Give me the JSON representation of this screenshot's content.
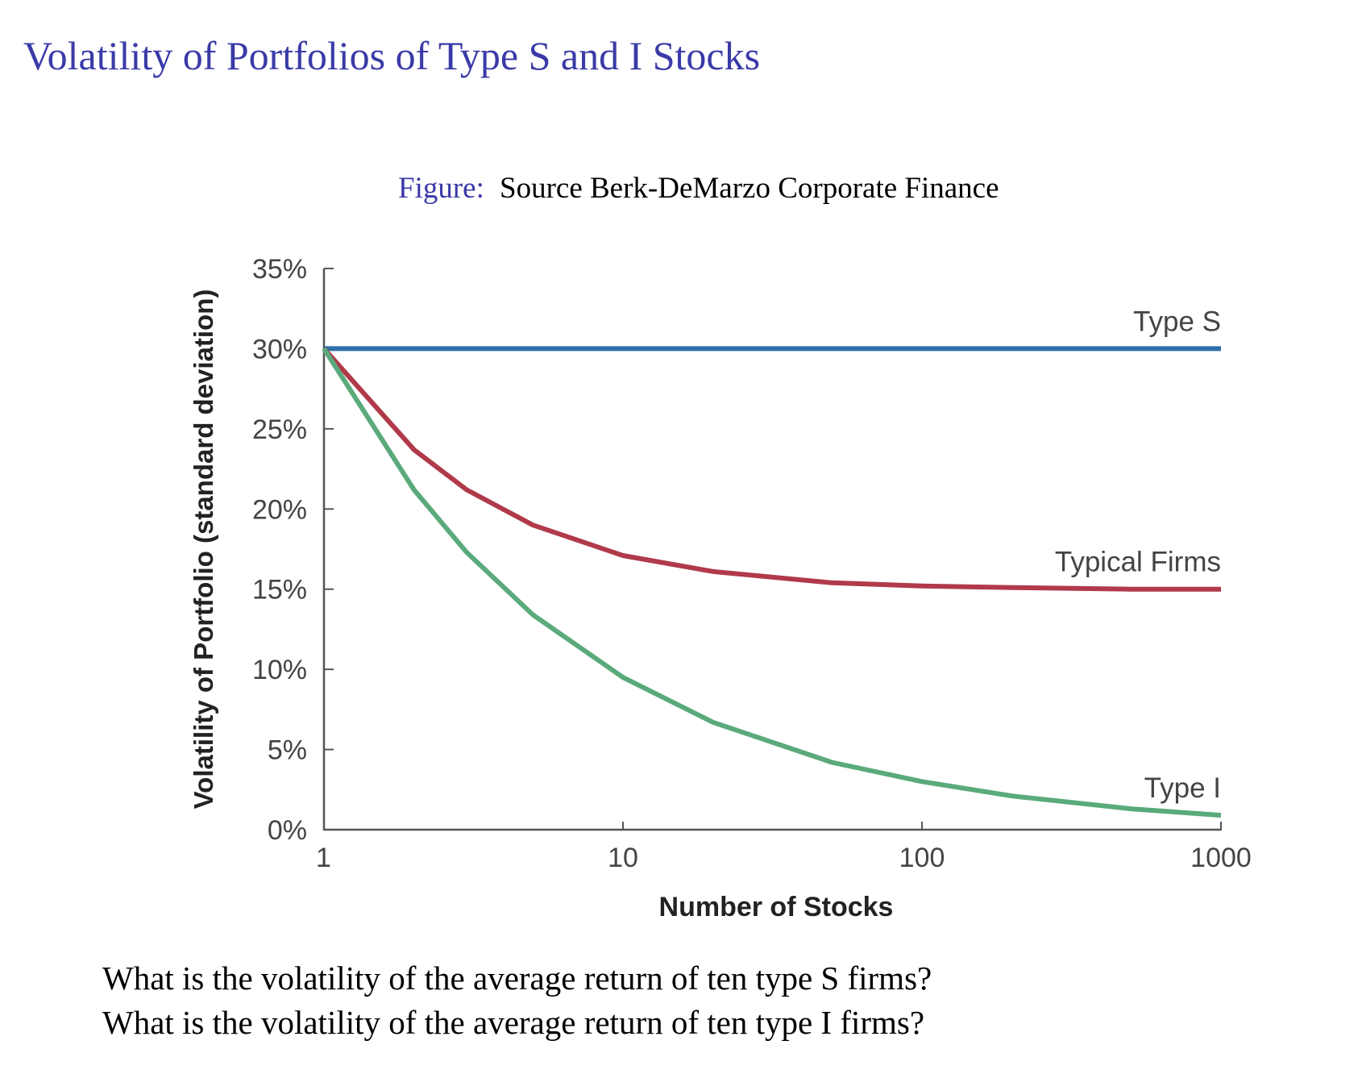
{
  "slide": {
    "title": "Volatility of Portfolios of Type S and I Stocks",
    "caption_label": "Figure:",
    "caption_text": "Source Berk-DeMarzo Corporate Finance",
    "questions": [
      "What is the volatility of the average return of ten type S firms?",
      "What is the volatility of the average return of ten type I firms?"
    ]
  },
  "chart_data": {
    "type": "line",
    "x_label": "Number of Stocks",
    "y_label": "Volatility of Portfolio (standard deviation)",
    "x": [
      1,
      2,
      3,
      5,
      10,
      20,
      50,
      100,
      200,
      500,
      1000
    ],
    "xscale": "log",
    "xlim": [
      1,
      1000
    ],
    "xticks": [
      1,
      10,
      100,
      1000
    ],
    "ylim": [
      0,
      35
    ],
    "yticks": [
      {
        "value": 0,
        "label": "0%"
      },
      {
        "value": 5,
        "label": "5%"
      },
      {
        "value": 10,
        "label": "10%"
      },
      {
        "value": 15,
        "label": "15%"
      },
      {
        "value": 20,
        "label": "20%"
      },
      {
        "value": 25,
        "label": "25%"
      },
      {
        "value": 30,
        "label": "30%"
      },
      {
        "value": 35,
        "label": "35%"
      }
    ],
    "series": [
      {
        "name": "Type S",
        "color": "#2f6ea8",
        "values": [
          30,
          30,
          30,
          30,
          30,
          30,
          30,
          30,
          30,
          30,
          30
        ]
      },
      {
        "name": "Typical Firms",
        "color": "#b03a4a",
        "values": [
          30,
          23.7,
          21.2,
          19,
          17.1,
          16.1,
          15.4,
          15.2,
          15.1,
          15,
          15
        ]
      },
      {
        "name": "Type I",
        "color": "#5aaa7c",
        "values": [
          30,
          21.2,
          17.3,
          13.4,
          9.5,
          6.7,
          4.2,
          3,
          2.1,
          1.3,
          0.9
        ]
      }
    ]
  }
}
